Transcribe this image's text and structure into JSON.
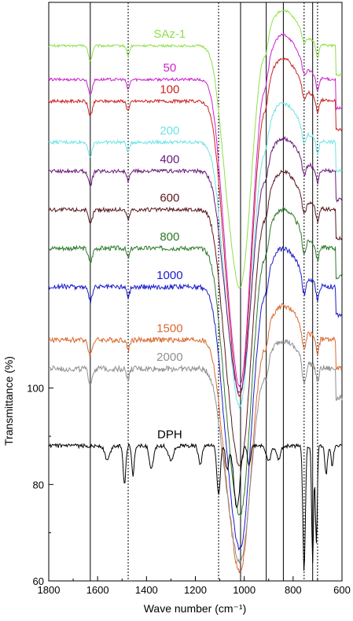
{
  "chart_data": {
    "type": "line",
    "xlabel": "Wave number (cm⁻¹)",
    "ylabel": "Transmittance (%)",
    "xlim": [
      1800,
      600
    ],
    "x_reversed": true,
    "ylim": [
      60,
      180
    ],
    "x_ticks": [
      "1800",
      "1600",
      "1400",
      "1200",
      "1000",
      "800",
      "600"
    ],
    "y_ticks": [
      "60",
      "80",
      "100"
    ],
    "reference_lines": {
      "solid": [
        1630,
        1015,
        910,
        840,
        720
      ],
      "dashed": [
        1475,
        1105,
        755,
        700
      ]
    },
    "series": [
      {
        "name": "SAz-1",
        "color": "#8ee04a",
        "baseline": 171,
        "dip_at_1015": 122
      },
      {
        "name": "50",
        "color": "#cc22cc",
        "baseline": 164,
        "dip_at_1015": 102
      },
      {
        "name": "100",
        "color": "#cc2222",
        "baseline": 159.5,
        "dip_at_1015": 100
      },
      {
        "name": "200",
        "color": "#6ee4e4",
        "baseline": 151,
        "dip_at_1015": 97.5
      },
      {
        "name": "400",
        "color": "#6a1a7a",
        "baseline": 145,
        "dip_at_1015": 100
      },
      {
        "name": "600",
        "color": "#5a1a20",
        "baseline": 137,
        "dip_at_1015": 85
      },
      {
        "name": "800",
        "color": "#2e7a2a",
        "baseline": 129,
        "dip_at_1015": 75
      },
      {
        "name": "1000",
        "color": "#1a1acc",
        "baseline": 121,
        "dip_at_1015": 68
      },
      {
        "name": "1500",
        "color": "#d86a30",
        "baseline": 110,
        "dip_at_1015": 63
      },
      {
        "name": "2000",
        "color": "#909090",
        "baseline": 104,
        "dip_at_1015": 65
      },
      {
        "name": "DPH",
        "color": "#000000",
        "baseline": 88,
        "dip_at_1015": 76
      }
    ]
  }
}
